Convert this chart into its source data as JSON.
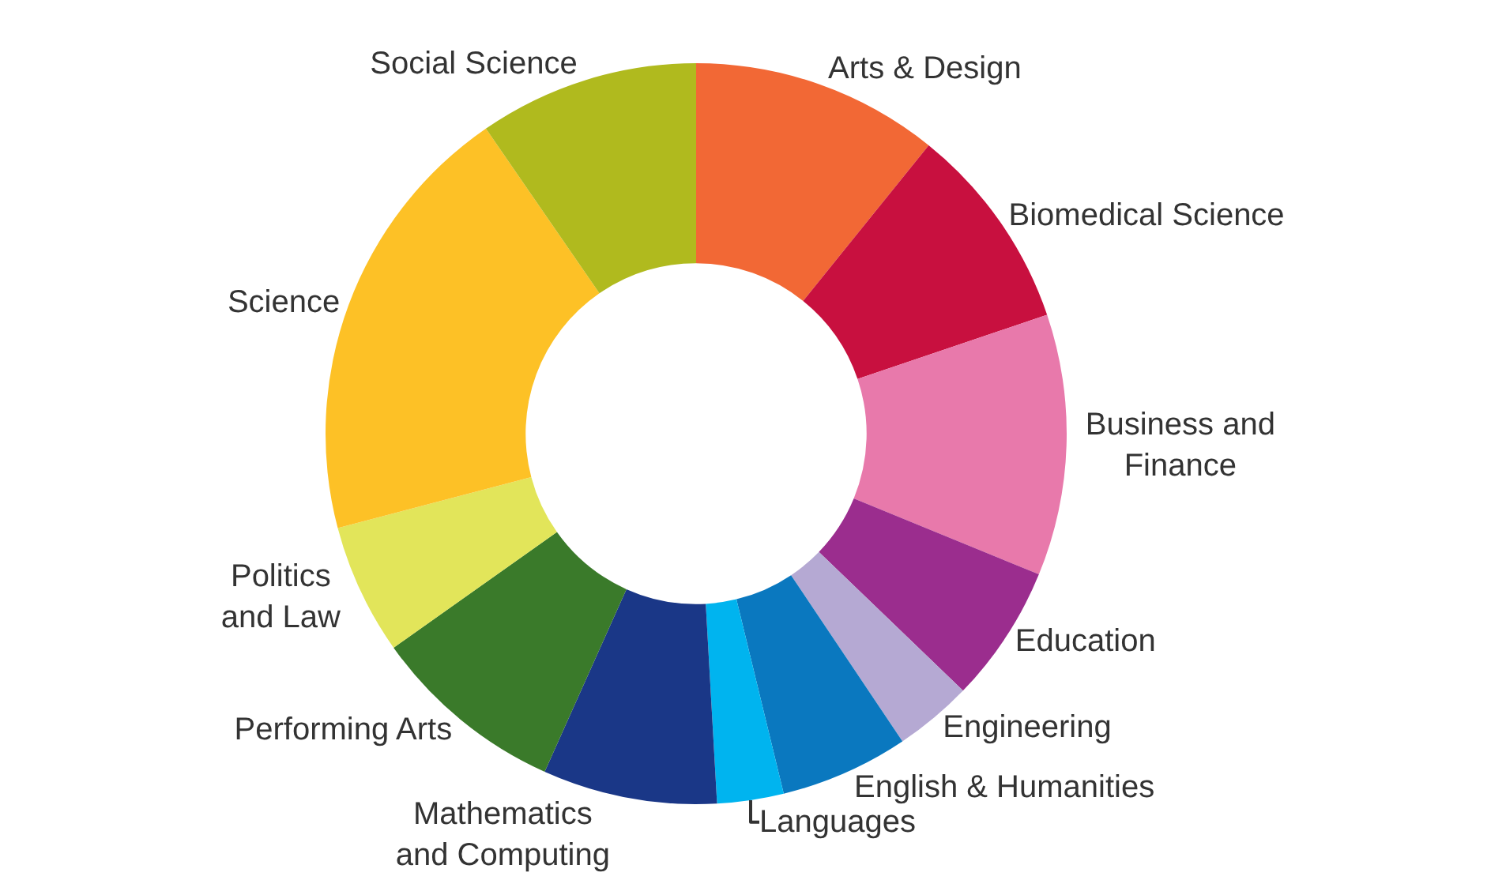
{
  "chart_data": {
    "type": "donut",
    "categories": [
      "Arts & Design",
      "Biomedical Science",
      "Business and\nFinance",
      "Education",
      "Engineering",
      "English & Humanities",
      "Languages",
      "Mathematics\nand Computing",
      "Performing Arts",
      "Politics\nand Law",
      "Science",
      "Social Science"
    ],
    "values": [
      10.8,
      9,
      11.4,
      6,
      3.4,
      5.6,
      2.9,
      7.6,
      8.5,
      5.7,
      19.5,
      9.6
    ],
    "colors": [
      "#f26835",
      "#c8103f",
      "#e879ab",
      "#9b2d8e",
      "#b5a9d3",
      "#0a78bf",
      "#00b4ef",
      "#1a3787",
      "#3a7a2a",
      "#e2e55a",
      "#fdc126",
      "#b0ba1e"
    ],
    "legend": false
  }
}
